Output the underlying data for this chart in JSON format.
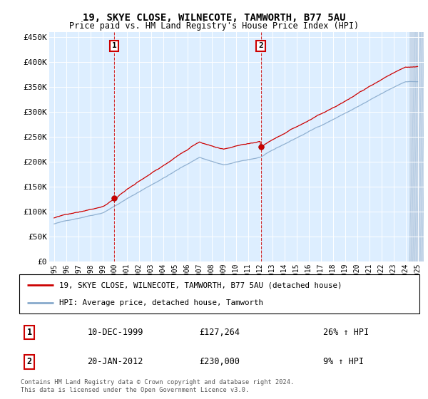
{
  "title": "19, SKYE CLOSE, WILNECOTE, TAMWORTH, B77 5AU",
  "subtitle": "Price paid vs. HM Land Registry's House Price Index (HPI)",
  "ylim": [
    0,
    460000
  ],
  "yticks": [
    0,
    50000,
    100000,
    150000,
    200000,
    250000,
    300000,
    350000,
    400000,
    450000
  ],
  "ytick_labels": [
    "£0",
    "£50K",
    "£100K",
    "£150K",
    "£200K",
    "£250K",
    "£300K",
    "£350K",
    "£400K",
    "£450K"
  ],
  "sale1_year": 1999.958,
  "sale1_price": 127264,
  "sale2_year": 2012.055,
  "sale2_price": 230000,
  "line_color_property": "#cc0000",
  "line_color_hpi": "#88aacc",
  "bg_color": "#ddeeff",
  "legend_label_property": "19, SKYE CLOSE, WILNECOTE, TAMWORTH, B77 5AU (detached house)",
  "legend_label_hpi": "HPI: Average price, detached house, Tamworth",
  "footer_line1": "Contains HM Land Registry data © Crown copyright and database right 2024.",
  "footer_line2": "This data is licensed under the Open Government Licence v3.0.",
  "table_row1": [
    "1",
    "10-DEC-1999",
    "£127,264",
    "26% ↑ HPI"
  ],
  "table_row2": [
    "2",
    "20-JAN-2012",
    "£230,000",
    "9% ↑ HPI"
  ],
  "xstart": 1995,
  "xend": 2025
}
